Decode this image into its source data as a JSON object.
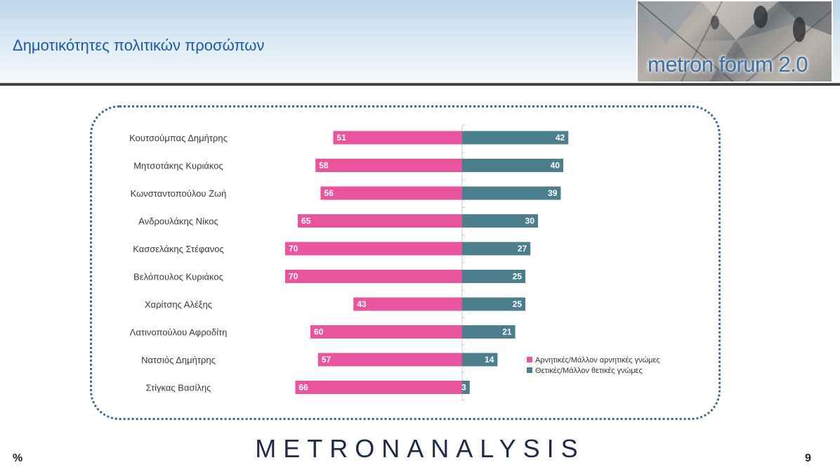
{
  "header": {
    "title": "Δημοτικότητες πολιτικών προσώπων",
    "logo_text": "metron forum 2.0"
  },
  "colors": {
    "negative": "#e8559c",
    "positive": "#4b7f8e",
    "title": "#1a5aa8",
    "frame": "#3a6a94"
  },
  "chart_data": {
    "type": "bar",
    "orientation": "horizontal-diverging",
    "categories": [
      "Κουτσούμπας Δημήτρης",
      "Μητσοτάκης Κυριάκος",
      "Κωνσταντοπούλου Ζωή",
      "Ανδρουλάκης Νίκος",
      "Κασσελάκης Στέφανος",
      "Βελόπουλος Κυριάκος",
      "Χαρίτσης Αλέξης",
      "Λατινοπούλου Αφροδίτη",
      "Νατσιός Δημήτρης",
      "Στίγκας Βασίλης"
    ],
    "series": [
      {
        "name": "Αρνητικές/Μάλλον αρνητικές γνώμες",
        "values": [
          51,
          58,
          56,
          65,
          70,
          70,
          43,
          60,
          57,
          66
        ]
      },
      {
        "name": "Θετικές/Μάλλον θετικές γνώμες",
        "values": [
          42,
          40,
          39,
          30,
          27,
          25,
          25,
          21,
          14,
          3
        ]
      }
    ],
    "legend_position": "bottom-right",
    "grid": false
  },
  "footer": {
    "brand": "METRONANALYSIS",
    "percent_sign": "%",
    "page_number": "9"
  }
}
